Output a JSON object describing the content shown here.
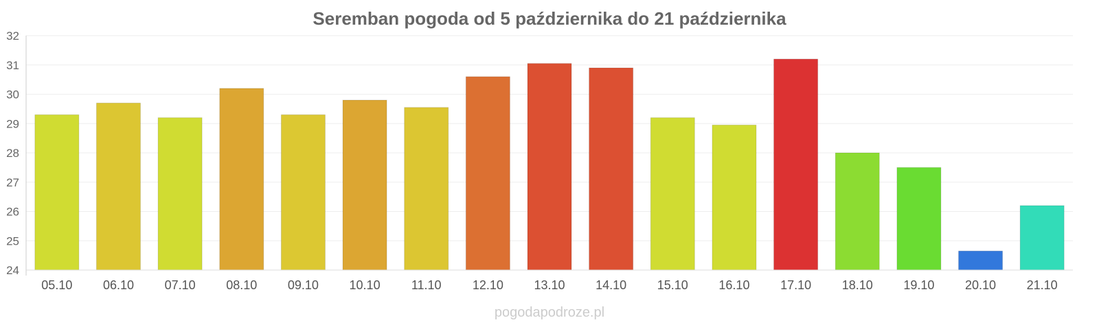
{
  "chart_data": {
    "type": "bar",
    "title": "Seremban pogoda od 5 października do 21 października",
    "xlabel": "",
    "ylabel": "",
    "ylim": [
      24,
      32
    ],
    "yticks": [
      24,
      25,
      26,
      27,
      28,
      29,
      30,
      31,
      32
    ],
    "grid": true,
    "categories": [
      "05.10",
      "06.10",
      "07.10",
      "08.10",
      "09.10",
      "10.10",
      "11.10",
      "12.10",
      "13.10",
      "14.10",
      "15.10",
      "16.10",
      "17.10",
      "18.10",
      "19.10",
      "20.10",
      "21.10"
    ],
    "values": [
      29.3,
      29.7,
      29.2,
      30.2,
      29.3,
      29.8,
      29.55,
      30.6,
      31.05,
      30.9,
      29.2,
      28.95,
      31.2,
      28.0,
      27.5,
      24.65,
      26.2
    ],
    "colors": [
      "#d0dc32",
      "#dcc632",
      "#d0dc32",
      "#dca632",
      "#dcc832",
      "#dca632",
      "#dcc632",
      "#dc7032",
      "#dc5032",
      "#dc5032",
      "#d0dc32",
      "#d0dc32",
      "#dc3232",
      "#8cdc32",
      "#6adc32",
      "#3278dc",
      "#32dcb8"
    ],
    "credit": "pogodapodroze.pl"
  }
}
